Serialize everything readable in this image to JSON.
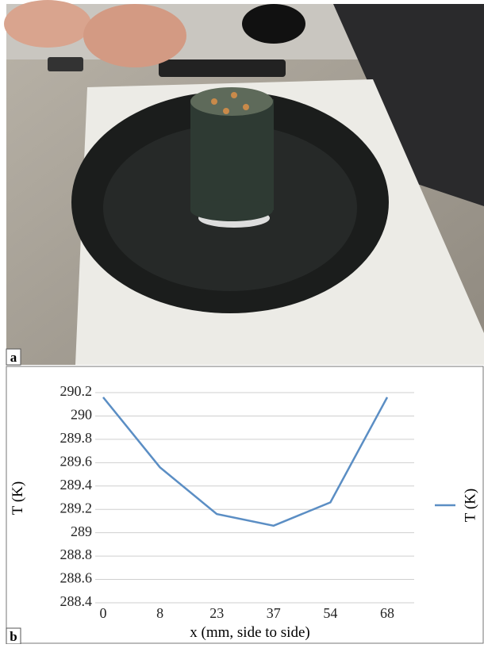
{
  "panels": {
    "a": "a",
    "b": "b"
  },
  "chart_data": {
    "type": "line",
    "categories": [
      "0",
      "8",
      "23",
      "37",
      "54",
      "68"
    ],
    "series": [
      {
        "name": "T (K)",
        "color": "#5b8ec4",
        "values": [
          290.16,
          289.56,
          289.16,
          289.06,
          289.26,
          290.16
        ]
      }
    ],
    "ylim": [
      288.4,
      290.2
    ],
    "yticks": [
      288.4,
      288.6,
      288.8,
      289,
      289.2,
      289.4,
      289.6,
      289.8,
      290,
      290.2
    ],
    "ylabel": "T (K)",
    "xlabel": "x (mm, side to side)",
    "grid": true,
    "legend": "right"
  }
}
